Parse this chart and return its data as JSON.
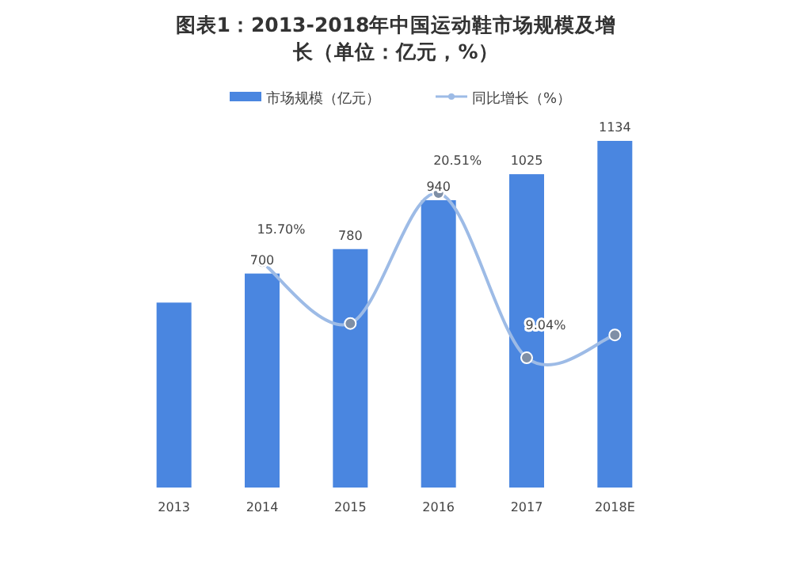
{
  "chart_data": {
    "type": "bar",
    "title": "图表1：2013-2018年中国运动鞋市场规模及增长（单位：亿元，%）",
    "categories": [
      "2013",
      "2014",
      "2015",
      "2016",
      "2017",
      "2018E"
    ],
    "legend": "top",
    "marker": "circle",
    "tick_labels": "x",
    "series": [
      {
        "name": "市场规模（亿元）",
        "color": "#4a86e0",
        "values": [
          605,
          700,
          780,
          940,
          1025,
          1134
        ],
        "value_labels": [
          null,
          "700",
          "780",
          "940",
          "1025",
          "1134"
        ]
      },
      {
        "name": "同比增长（%）",
        "type": "line",
        "axis": "y2",
        "color": "#9dbbe6",
        "values": [
          null,
          15.7,
          11.43,
          20.51,
          9.04,
          10.63
        ],
        "value_labels": [
          null,
          "15.70%",
          null,
          "20.51%",
          "9.04%",
          null
        ]
      }
    ]
  }
}
